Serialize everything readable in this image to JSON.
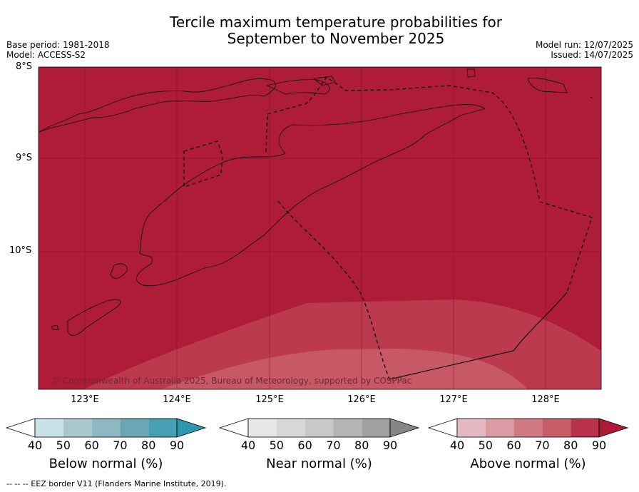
{
  "title_line1": "Tercile maximum temperature probabilities for",
  "title_line2": "September to November 2025",
  "base_period": "Base period: 1981-2018",
  "model": "Model: ACCESS-S2",
  "model_run": "Model run: 12/07/2025",
  "issued": "Issued: 14/07/2025",
  "lat_labels": [
    "8°S",
    "9°S",
    "10°S"
  ],
  "lon_labels": [
    "123°E",
    "124°E",
    "125°E",
    "126°E",
    "127°E",
    "128°E"
  ],
  "copyright": "© Commonwealth of Australia 2025, Bureau of Meteorology, supported by COSPPac",
  "colorbars": [
    {
      "title": "Below normal (%)",
      "ticks": [
        "40",
        "50",
        "60",
        "70",
        "80",
        "90"
      ],
      "colors": [
        "#ffffff",
        "#c9e2e8",
        "#a9c8cd",
        "#8db8c2",
        "#6aa7b5",
        "#46a0b2",
        "#2f97ad"
      ]
    },
    {
      "title": "Near normal (%)",
      "ticks": [
        "40",
        "50",
        "60",
        "70",
        "80",
        "90"
      ],
      "colors": [
        "#ffffff",
        "#e6e6e6",
        "#d8d8d8",
        "#c8c8c8",
        "#b4b4b4",
        "#a0a0a0",
        "#868686"
      ]
    },
    {
      "title": "Above normal (%)",
      "ticks": [
        "40",
        "50",
        "60",
        "70",
        "80",
        "90"
      ],
      "colors": [
        "#ffffff",
        "#e4b8c0",
        "#db9ba5",
        "#cf7a83",
        "#c65d68",
        "#b9344a",
        "#ac1a36"
      ]
    }
  ],
  "footnote": "--  --  -- EEZ border V11 (Flanders Marine Institute, 2019).",
  "map_colors": {
    "above_90": "#ae1c38",
    "above_80": "#bb3a4e",
    "above_70": "#c75865"
  }
}
